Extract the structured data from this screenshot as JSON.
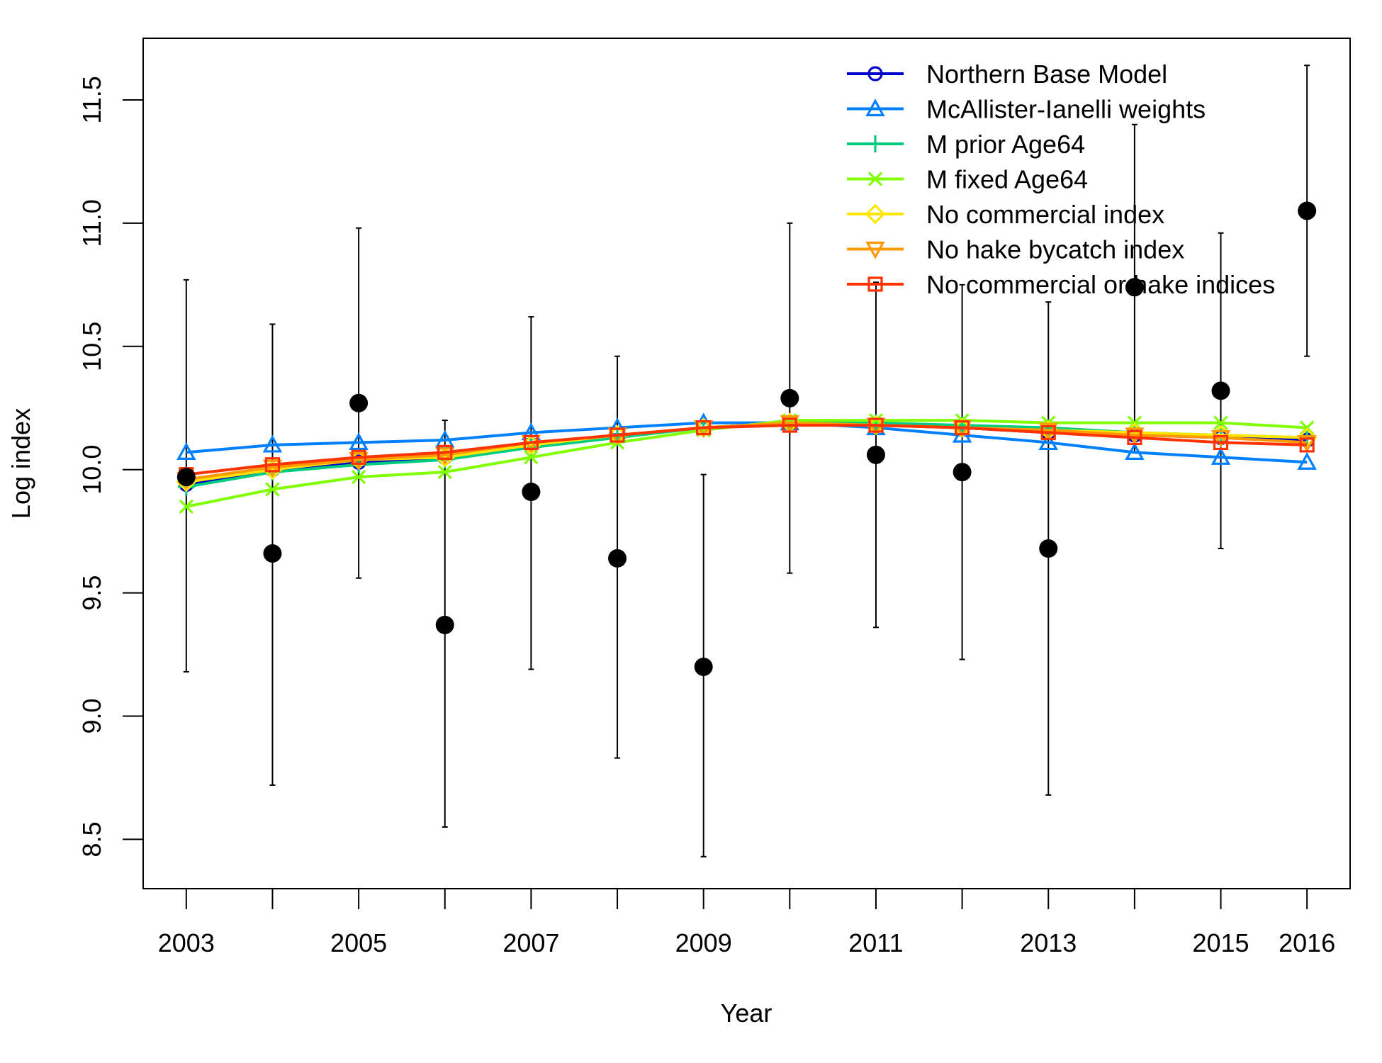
{
  "chart_data": {
    "type": "line",
    "title": "",
    "xlabel": "Year",
    "ylabel": "Log index",
    "xlim": [
      2002.5,
      2016.5
    ],
    "ylim": [
      8.3,
      11.75
    ],
    "x_ticks": [
      2003,
      2004,
      2005,
      2006,
      2007,
      2008,
      2009,
      2010,
      2011,
      2012,
      2013,
      2014,
      2015,
      2016
    ],
    "x_tick_labels": [
      "2003",
      "",
      "2005",
      "",
      "2007",
      "",
      "2009",
      "",
      "2011",
      "",
      "2013",
      "",
      "2015",
      "2016"
    ],
    "y_ticks": [
      8.5,
      9.0,
      9.5,
      10.0,
      10.5,
      11.0,
      11.5
    ],
    "y_tick_labels": [
      "8.5",
      "9.0",
      "9.5",
      "10.0",
      "10.5",
      "11.0",
      "11.5"
    ],
    "grid": false,
    "legend_position": "top-right",
    "x": [
      2003,
      2004,
      2005,
      2006,
      2007,
      2008,
      2009,
      2010,
      2011,
      2012,
      2013,
      2014,
      2015,
      2016
    ],
    "observed": {
      "values": [
        9.97,
        9.66,
        10.27,
        9.37,
        9.91,
        9.64,
        9.2,
        10.29,
        10.06,
        9.99,
        9.68,
        10.74,
        10.32,
        11.05
      ],
      "lower": [
        9.18,
        8.72,
        9.56,
        8.55,
        9.19,
        8.83,
        8.43,
        9.58,
        9.36,
        9.23,
        8.68,
        10.07,
        9.68,
        10.46
      ],
      "upper": [
        10.77,
        10.59,
        10.98,
        10.2,
        10.62,
        10.46,
        9.98,
        11.0,
        10.76,
        10.75,
        10.68,
        11.4,
        10.96,
        11.64
      ],
      "color": "#000000"
    },
    "series": [
      {
        "name": "Northern Base Model",
        "color": "#0000CC",
        "marker": "circle",
        "values": [
          9.94,
          10.0,
          10.03,
          10.05,
          10.1,
          10.14,
          10.17,
          10.19,
          10.18,
          10.17,
          10.15,
          10.14,
          10.13,
          10.12
        ]
      },
      {
        "name": "McAllister-Ianelli weights",
        "color": "#0080FF",
        "marker": "triangle-up",
        "values": [
          10.07,
          10.1,
          10.11,
          10.12,
          10.15,
          10.17,
          10.19,
          10.19,
          10.17,
          10.14,
          10.11,
          10.07,
          10.05,
          10.03
        ]
      },
      {
        "name": "M prior Age64",
        "color": "#00CC80",
        "marker": "plus",
        "values": [
          9.93,
          9.99,
          10.02,
          10.04,
          10.09,
          10.13,
          10.17,
          10.19,
          10.19,
          10.18,
          10.17,
          10.15,
          10.14,
          10.13
        ]
      },
      {
        "name": "M fixed Age64",
        "color": "#80FF00",
        "marker": "cross",
        "values": [
          9.85,
          9.92,
          9.97,
          9.99,
          10.05,
          10.11,
          10.16,
          10.2,
          10.2,
          10.2,
          10.19,
          10.19,
          10.19,
          10.17
        ]
      },
      {
        "name": "No commercial index",
        "color": "#FFE600",
        "marker": "diamond",
        "values": [
          9.95,
          10.0,
          10.04,
          10.05,
          10.1,
          10.14,
          10.17,
          10.19,
          10.18,
          10.17,
          10.16,
          10.15,
          10.14,
          10.13
        ]
      },
      {
        "name": "No hake bycatch index",
        "color": "#FF9900",
        "marker": "triangle-down",
        "values": [
          9.96,
          10.01,
          10.04,
          10.06,
          10.11,
          10.14,
          10.17,
          10.19,
          10.18,
          10.17,
          10.16,
          10.14,
          10.13,
          10.11
        ]
      },
      {
        "name": "No commercial or hake indices",
        "color": "#FF3300",
        "marker": "square",
        "values": [
          9.98,
          10.02,
          10.05,
          10.07,
          10.11,
          10.14,
          10.17,
          10.18,
          10.18,
          10.17,
          10.15,
          10.13,
          10.11,
          10.1
        ]
      }
    ]
  }
}
